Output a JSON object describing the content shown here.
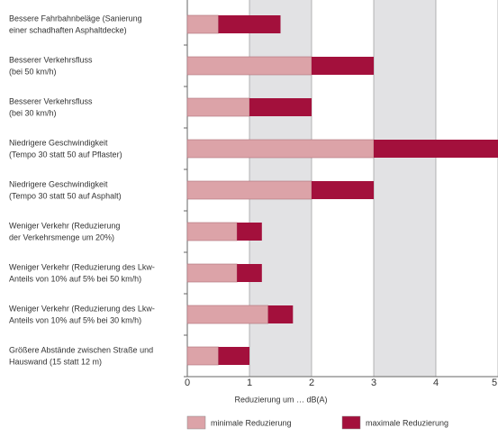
{
  "chart_data": {
    "type": "range_bar",
    "categories": [
      [
        "Bessere Fahrbahnbeläge (Sanierung",
        "einer schadhaften Asphaltdecke)"
      ],
      [
        "Besserer Verkehrsfluss",
        "(bei 50 km/h)"
      ],
      [
        "Besserer Verkehrsfluss",
        "(bei 30 km/h)"
      ],
      [
        "Niedrigere Geschwindigkeit",
        "(Tempo 30 statt 50 auf Pflaster)"
      ],
      [
        "Niedrigere Geschwindigkeit",
        "(Tempo 30 statt 50 auf Asphalt)"
      ],
      [
        "Weniger Verkehr (Reduzierung",
        "der Verkehrsmenge um 20%)"
      ],
      [
        "Weniger Verkehr (Reduzierung des Lkw-",
        "Anteils von 10% auf 5% bei 50 km/h)"
      ],
      [
        "Weniger Verkehr (Reduzierung des Lkw-",
        "Anteils von 10% auf 5% bei 30 km/h)"
      ],
      [
        "Größere Abstände zwischen Straße und",
        "Hauswand (15 statt 12 m)"
      ]
    ],
    "series": [
      {
        "name": "minimale Reduzierung",
        "color": "#dca3a8",
        "values": [
          0.5,
          2,
          1,
          3,
          2,
          0.8,
          0.8,
          1.3,
          0.5
        ]
      },
      {
        "name": "maximale Reduzierung",
        "color": "#a3103c",
        "values": [
          1.5,
          3,
          2,
          5,
          3,
          1.2,
          1.2,
          1.7,
          1
        ]
      }
    ],
    "x_label": "Reduzierung um … dB(A)",
    "xlim": [
      0,
      5
    ],
    "xticks": [
      0,
      1,
      2,
      3,
      4,
      5
    ],
    "shaded_bands": true,
    "grid": true,
    "legend": "bottom"
  }
}
